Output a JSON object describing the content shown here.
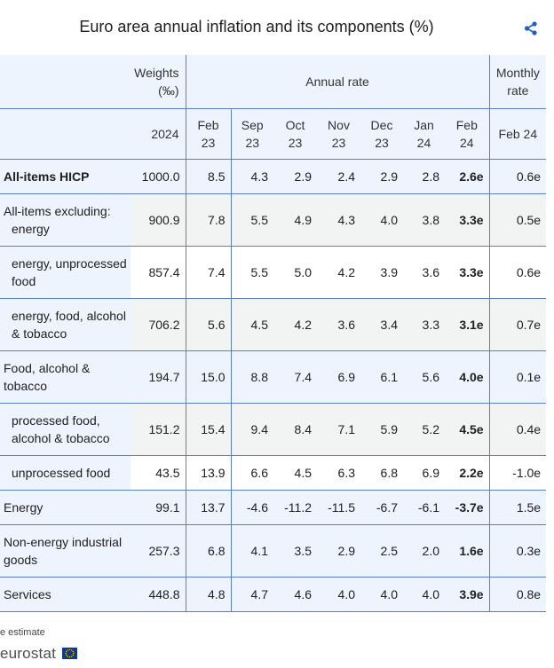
{
  "title": "Euro area annual inflation and its components (%)",
  "icons": {
    "share": "share-icon",
    "flag": "eu-flag-icon"
  },
  "colors": {
    "header_bg": "#eef4fd",
    "border": "#5b7fbf",
    "share": "#1f5fc6"
  },
  "header": {
    "weights": "Weights",
    "weights_unit": "(‰)",
    "annual_rate": "Annual rate",
    "monthly": "Monthly",
    "monthly_2": "rate",
    "weights_year": "2024",
    "periods": [
      [
        "Feb",
        "23"
      ],
      [
        "Sep",
        "23"
      ],
      [
        "Oct",
        "23"
      ],
      [
        "Nov",
        "23"
      ],
      [
        "Dec",
        "23"
      ],
      [
        "Jan",
        "24"
      ],
      [
        "Feb",
        "24"
      ]
    ],
    "monthly_period": "Feb 24"
  },
  "rows": [
    {
      "label": "All-items HICP",
      "weight": "1000.0",
      "values": [
        "8.5",
        "4.3",
        "2.9",
        "2.4",
        "2.9",
        "2.8",
        "2.6e"
      ],
      "monthly": "0.6e"
    },
    {
      "label_1": "All-items excluding:",
      "label_2": "energy",
      "weight": "900.9",
      "values": [
        "7.8",
        "5.5",
        "4.9",
        "4.3",
        "4.0",
        "3.8",
        "3.3e"
      ],
      "monthly": "0.5e"
    },
    {
      "label_1": "energy, unprocessed",
      "label_2": "food",
      "weight": "857.4",
      "values": [
        "7.4",
        "5.5",
        "5.0",
        "4.2",
        "3.9",
        "3.6",
        "3.3e"
      ],
      "monthly": "0.6e"
    },
    {
      "label_1": "energy, food, alcohol",
      "label_2": "& tobacco",
      "weight": "706.2",
      "values": [
        "5.6",
        "4.5",
        "4.2",
        "3.6",
        "3.4",
        "3.3",
        "3.1e"
      ],
      "monthly": "0.7e"
    },
    {
      "label_1": "Food, alcohol &",
      "label_2": "tobacco",
      "weight": "194.7",
      "values": [
        "15.0",
        "8.8",
        "7.4",
        "6.9",
        "6.1",
        "5.6",
        "4.0e"
      ],
      "monthly": "0.1e"
    },
    {
      "label_1": "processed food,",
      "label_2": "alcohol & tobacco",
      "weight": "151.2",
      "values": [
        "15.4",
        "9.4",
        "8.4",
        "7.1",
        "5.9",
        "5.2",
        "4.5e"
      ],
      "monthly": "0.4e"
    },
    {
      "label": "unprocessed food",
      "weight": "43.5",
      "values": [
        "13.9",
        "6.6",
        "4.5",
        "6.3",
        "6.8",
        "6.9",
        "2.2e"
      ],
      "monthly": "-1.0e"
    },
    {
      "label": "Energy",
      "weight": "99.1",
      "values": [
        "13.7",
        "-4.6",
        "-11.2",
        "-11.5",
        "-6.7",
        "-6.1",
        "-3.7e"
      ],
      "monthly": "1.5e"
    },
    {
      "label_1": "Non-energy industrial",
      "label_2": "goods",
      "weight": "257.3",
      "values": [
        "6.8",
        "4.1",
        "3.5",
        "2.9",
        "2.5",
        "2.0",
        "1.6e"
      ],
      "monthly": "0.3e"
    },
    {
      "label": "Services",
      "weight": "448.8",
      "values": [
        "4.8",
        "4.7",
        "4.6",
        "4.0",
        "4.0",
        "4.0",
        "3.9e"
      ],
      "monthly": "0.8e"
    }
  ],
  "footnote": "e estimate",
  "logo": "eurostat"
}
